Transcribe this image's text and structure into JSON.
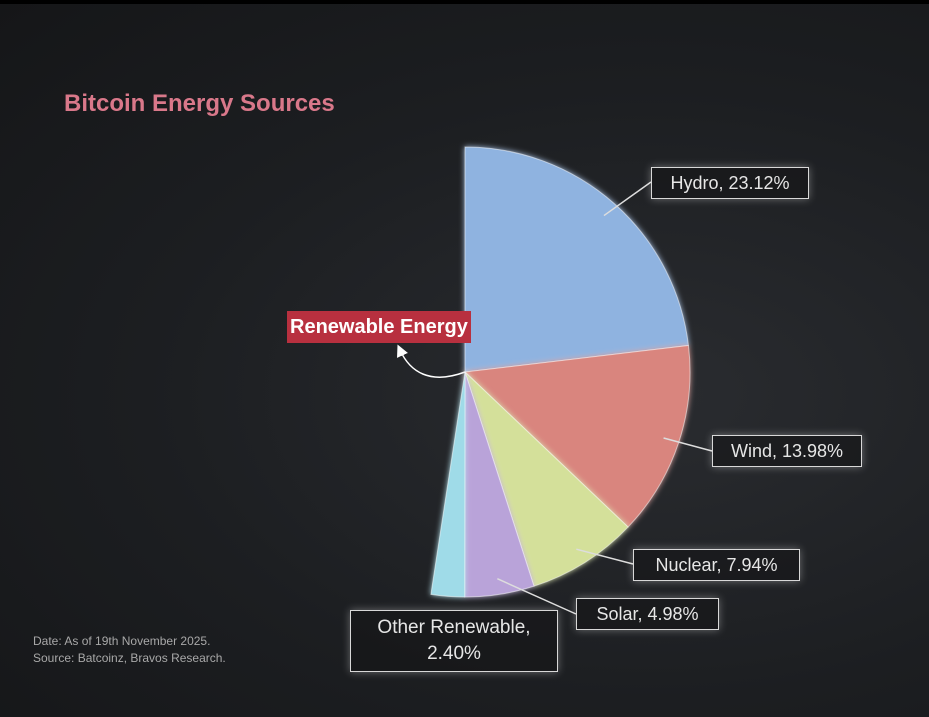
{
  "chart_data": {
    "type": "pie",
    "title": "Bitcoin Energy Sources",
    "values": [
      23.12,
      13.98,
      7.94,
      4.98,
      2.4
    ],
    "value_labels": [
      "Hydro, 23.12%",
      "Wind, 13.98%",
      "Nuclear, 7.94%",
      "Solar, 4.98%",
      "Other Renewable, 2.40%"
    ],
    "colors": [
      "#8fb3e0",
      "#d9857e",
      "#d4e09a",
      "#b9a3d9",
      "#9fdbe8"
    ],
    "annotation": "Renewable Energy",
    "notes": [
      "Date: As of 19th November 2025.",
      "Source: Batcoinz, Bravos Research."
    ]
  }
}
